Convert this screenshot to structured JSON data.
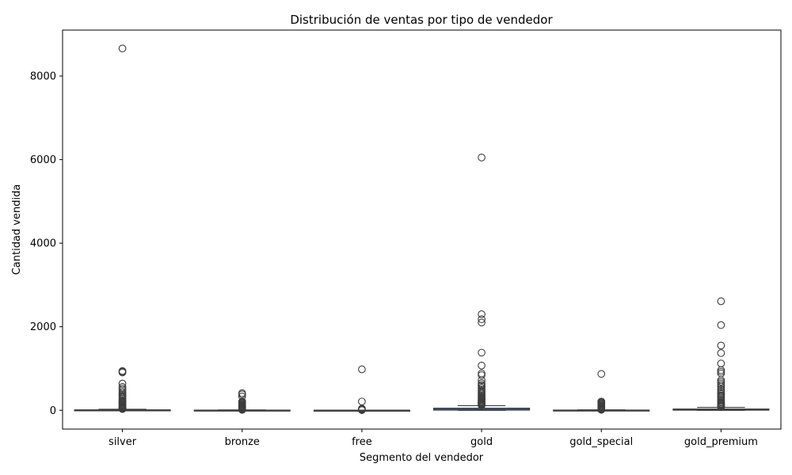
{
  "chart_data": {
    "type": "box",
    "title": "Distribución de ventas por tipo de vendedor",
    "xlabel": "Segmento del vendedor",
    "ylabel": "Cantidad vendida",
    "ylim": [
      -450,
      9100
    ],
    "yticks": [
      0,
      2000,
      4000,
      6000,
      8000
    ],
    "grid": false,
    "categories": [
      "silver",
      "bronze",
      "free",
      "gold",
      "gold_special",
      "gold_premium"
    ],
    "colors": {
      "box_fill": "#4c72b0",
      "line": "#3d3d3d",
      "outlier_edge": "#3d3d3d"
    },
    "boxes": [
      {
        "category": "silver",
        "whisker_low": 0,
        "q1": 1,
        "median": 3,
        "q3": 10,
        "whisker_high": 25,
        "outliers": [
          8660,
          940,
          920,
          905,
          640,
          560,
          520,
          480,
          440,
          400,
          370,
          340,
          310,
          280,
          250,
          220,
          200,
          180,
          160,
          140,
          120,
          100,
          85,
          70,
          55,
          45,
          35,
          30
        ]
      },
      {
        "category": "bronze",
        "whisker_low": 0,
        "q1": 1,
        "median": 2,
        "q3": 4,
        "whisker_high": 8,
        "outliers": [
          410,
          380,
          330,
          210,
          190,
          170,
          150,
          130,
          115,
          100,
          90,
          80,
          70,
          60,
          50,
          40,
          30,
          25,
          20,
          15,
          12,
          10
        ]
      },
      {
        "category": "free",
        "whisker_low": 0,
        "q1": 1,
        "median": 1,
        "q3": 2,
        "whisker_high": 4,
        "outliers": [
          980,
          210,
          40,
          25,
          15,
          10,
          6,
          5
        ]
      },
      {
        "category": "gold",
        "whisker_low": 0,
        "q1": 5,
        "median": 15,
        "q3": 50,
        "whisker_high": 110,
        "outliers": [
          6050,
          2300,
          2180,
          2100,
          1380,
          1070,
          880,
          840,
          720,
          650,
          610,
          580,
          540,
          500,
          470,
          440,
          410,
          380,
          350,
          320,
          300,
          280,
          260,
          240,
          220,
          200,
          185,
          170,
          155,
          140,
          125,
          115
        ]
      },
      {
        "category": "gold_special",
        "whisker_low": 0,
        "q1": 1,
        "median": 2,
        "q3": 5,
        "whisker_high": 10,
        "outliers": [
          870,
          210,
          190,
          170,
          150,
          130,
          110,
          95,
          80,
          65,
          50,
          40,
          30,
          20,
          15,
          12
        ]
      },
      {
        "category": "gold_premium",
        "whisker_low": 0,
        "q1": 3,
        "median": 10,
        "q3": 30,
        "whisker_high": 70,
        "outliers": [
          2610,
          2040,
          1550,
          1370,
          1120,
          960,
          920,
          880,
          720,
          680,
          640,
          600,
          560,
          500,
          460,
          420,
          390,
          360,
          330,
          300,
          270,
          240,
          210,
          185,
          160,
          140,
          120,
          100,
          90,
          80
        ]
      }
    ]
  }
}
